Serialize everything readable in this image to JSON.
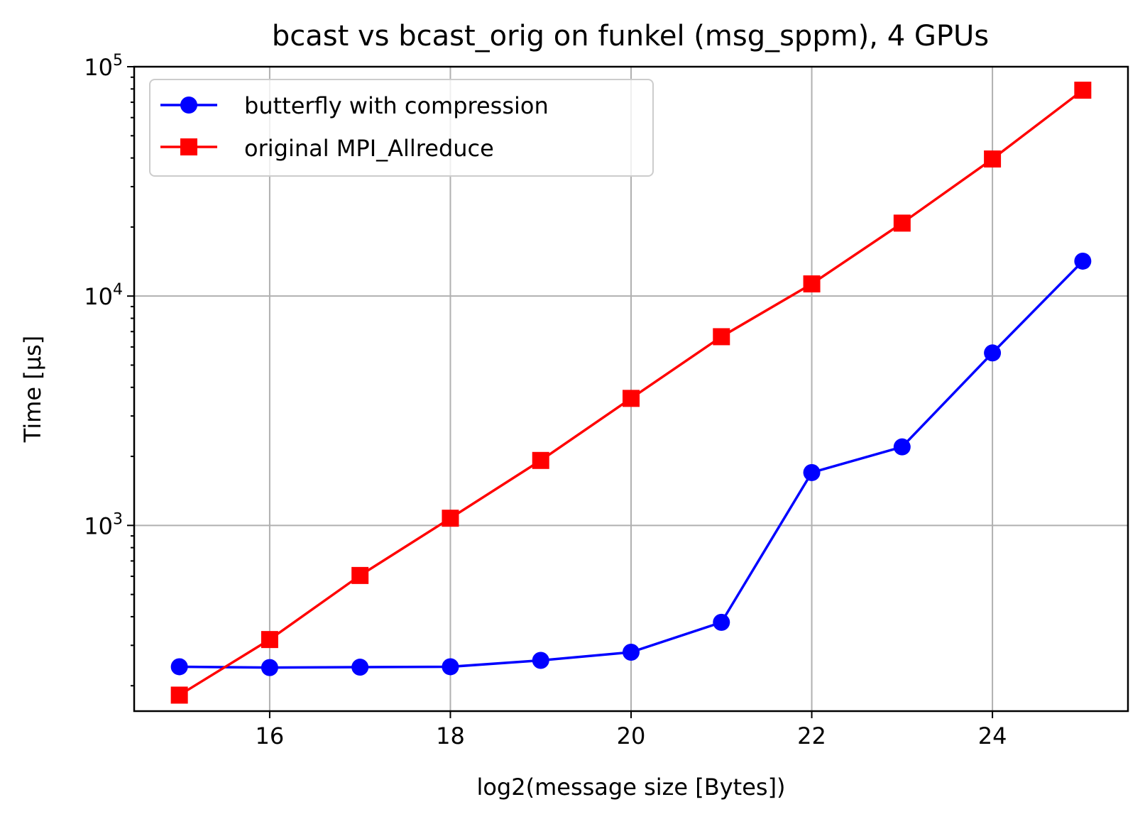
{
  "chart_data": {
    "type": "line",
    "title": "bcast vs bcast_orig on funkel (msg_sppm), 4 GPUs",
    "xlabel": "log2(message size [Bytes])",
    "ylabel": "Time [µs]",
    "yscale": "log",
    "xlim": [
      14.5,
      25.5
    ],
    "ylim": [
      155,
      100000
    ],
    "xticks": [
      16,
      18,
      20,
      22,
      24
    ],
    "yticks": [
      {
        "value": 1000,
        "base": "10",
        "exp": "3"
      },
      {
        "value": 10000,
        "base": "10",
        "exp": "4"
      },
      {
        "value": 100000,
        "base": "10",
        "exp": "5"
      }
    ],
    "grid": true,
    "legend_position": "top-left",
    "x": [
      15,
      16,
      17,
      18,
      19,
      20,
      21,
      22,
      23,
      24,
      25
    ],
    "series": [
      {
        "name": "butterfly with compression",
        "color": "#0000ff",
        "marker": "circle",
        "values": [
          242,
          240,
          241,
          242,
          258,
          280,
          378,
          1700,
          2200,
          5650,
          14200
        ]
      },
      {
        "name": "original MPI_Allreduce",
        "color": "#ff0000",
        "marker": "square",
        "values": [
          182,
          318,
          605,
          1075,
          1920,
          3580,
          6650,
          11300,
          20800,
          39600,
          79000
        ]
      }
    ]
  }
}
